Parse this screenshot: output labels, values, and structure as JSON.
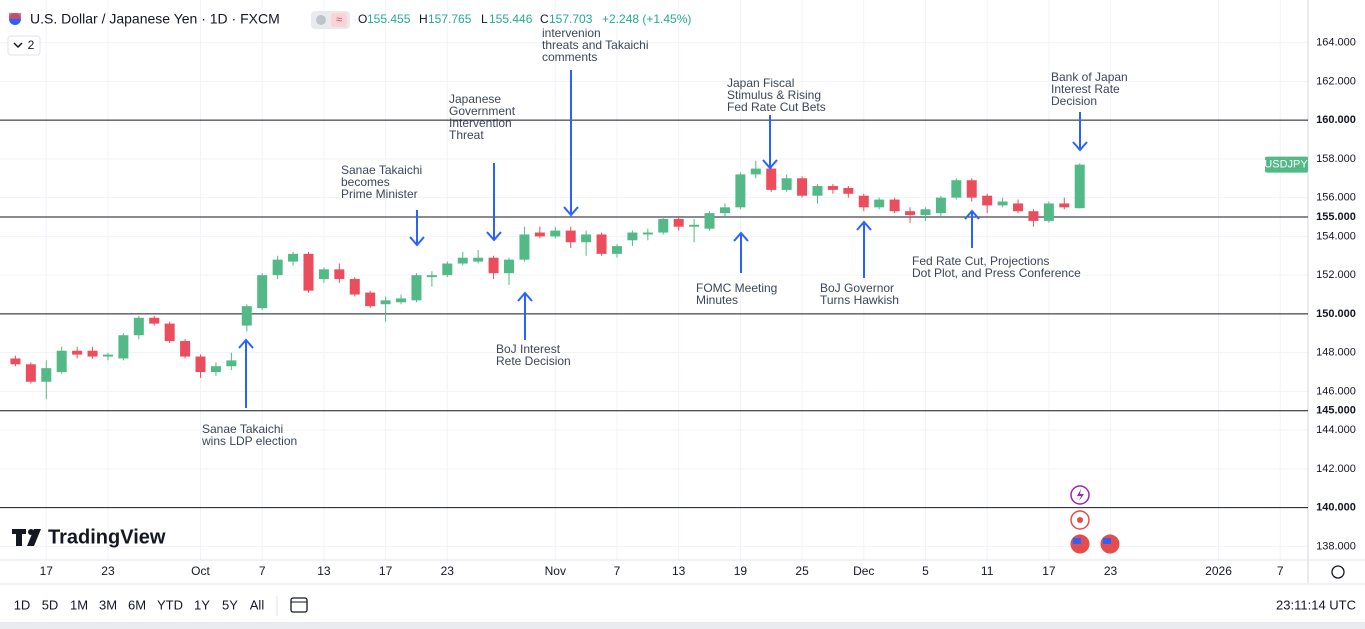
{
  "header": {
    "title": "U.S. Dollar / Japanese Yen · 1D · FXCM",
    "ohlc": [
      [
        "O",
        "155.455"
      ],
      [
        "H",
        "157.765"
      ],
      [
        "L",
        "155.446"
      ],
      [
        "C",
        "157.703"
      ]
    ],
    "change": "+2.248 (+1.45%)",
    "indicator_count": "2"
  },
  "logo": "TradingView",
  "toolbar": {
    "ranges": [
      "1D",
      "5D",
      "1M",
      "3M",
      "6M",
      "YTD",
      "1Y",
      "5Y",
      "All"
    ],
    "time": "23:11:14 UTC"
  },
  "chart_data": {
    "type": "candlestick",
    "up_color": "#53b987",
    "down_color": "#eb4d5c",
    "grid": true,
    "symbol_label": "USDJPY",
    "open": [
      147.7,
      147.4,
      146.5,
      147.0,
      148.1,
      148.1,
      147.8,
      147.7,
      148.9,
      149.8,
      149.5,
      148.6,
      147.8,
      147.0,
      147.3,
      149.4,
      150.3,
      152.0,
      152.7,
      153.1,
      151.8,
      152.3,
      151.8,
      151.1,
      150.5,
      150.6,
      150.7,
      151.9,
      152.0,
      152.6,
      152.7,
      152.9,
      152.1,
      152.8,
      154.2,
      154.0,
      154.3,
      153.7,
      154.1,
      153.1,
      153.8,
      154.1,
      154.2,
      154.9,
      154.5,
      154.4,
      155.2,
      155.5,
      157.2,
      157.5,
      156.4,
      157.0,
      156.1,
      156.6,
      156.5,
      156.1,
      155.5,
      155.9,
      155.3,
      155.1,
      155.2,
      156.0,
      156.9,
      156.1,
      155.6,
      155.7,
      155.3,
      154.8,
      155.7,
      155.455
    ],
    "high": [
      147.85,
      147.5,
      147.6,
      148.3,
      148.3,
      148.3,
      148.0,
      149.0,
      149.9,
      149.9,
      149.6,
      148.7,
      147.9,
      147.5,
      148.0,
      150.5,
      152.1,
      153.0,
      153.2,
      153.2,
      152.4,
      152.6,
      151.9,
      151.2,
      150.9,
      151.0,
      152.1,
      152.2,
      152.7,
      153.2,
      153.3,
      153.0,
      152.9,
      154.5,
      154.5,
      154.5,
      154.5,
      154.3,
      154.2,
      153.6,
      154.3,
      154.4,
      155.0,
      155.0,
      154.9,
      155.3,
      155.7,
      157.3,
      157.9,
      157.6,
      157.2,
      157.1,
      156.7,
      156.7,
      156.6,
      156.2,
      156.0,
      156.0,
      155.5,
      155.5,
      156.1,
      157.0,
      157.0,
      156.2,
      156.0,
      155.9,
      155.4,
      155.8,
      156.0,
      157.765
    ],
    "low": [
      147.3,
      146.4,
      145.6,
      146.9,
      147.7,
      147.7,
      147.6,
      147.6,
      148.7,
      149.4,
      148.5,
      147.7,
      146.7,
      146.8,
      147.1,
      149.1,
      150.2,
      151.8,
      152.5,
      151.1,
      151.6,
      151.6,
      150.9,
      150.3,
      149.6,
      150.5,
      150.6,
      151.4,
      151.9,
      152.5,
      152.6,
      151.8,
      151.5,
      152.7,
      153.9,
      153.9,
      153.4,
      153.0,
      153.0,
      152.9,
      153.5,
      153.8,
      154.1,
      154.3,
      153.7,
      154.3,
      155.0,
      155.4,
      157.0,
      156.3,
      156.3,
      156.0,
      155.7,
      156.2,
      156.0,
      155.3,
      155.4,
      155.2,
      154.7,
      154.8,
      155.0,
      155.9,
      155.8,
      155.2,
      155.5,
      155.2,
      154.5,
      154.7,
      155.4,
      155.446
    ],
    "close": [
      147.4,
      146.5,
      147.2,
      148.1,
      147.9,
      147.8,
      147.9,
      148.9,
      149.8,
      149.5,
      148.6,
      147.8,
      147.0,
      147.3,
      147.6,
      150.4,
      152.0,
      152.8,
      153.1,
      151.2,
      152.3,
      151.8,
      151.0,
      150.4,
      150.7,
      150.8,
      152.0,
      152.0,
      152.6,
      152.9,
      152.9,
      152.1,
      152.8,
      154.1,
      154.0,
      154.3,
      153.7,
      154.1,
      153.1,
      153.5,
      154.2,
      154.2,
      154.9,
      154.5,
      154.6,
      155.2,
      155.5,
      157.2,
      157.5,
      156.4,
      157.0,
      156.1,
      156.6,
      156.4,
      156.2,
      155.5,
      155.9,
      155.3,
      155.1,
      155.4,
      156.0,
      156.9,
      156.0,
      155.6,
      155.8,
      155.3,
      154.8,
      155.7,
      155.5,
      157.703
    ],
    "xlim": [
      -1,
      83.8
    ],
    "xticks": [
      {
        "value": 2,
        "label": "17"
      },
      {
        "value": 6,
        "label": "23"
      },
      {
        "value": 12,
        "label": "Oct"
      },
      {
        "value": 16,
        "label": "7"
      },
      {
        "value": 20,
        "label": "13"
      },
      {
        "value": 24,
        "label": "17"
      },
      {
        "value": 28,
        "label": "23"
      },
      {
        "value": 35,
        "label": "Nov"
      },
      {
        "value": 39,
        "label": "7"
      },
      {
        "value": 43,
        "label": "13"
      },
      {
        "value": 47,
        "label": "19"
      },
      {
        "value": 51,
        "label": "25"
      },
      {
        "value": 55,
        "label": "Dec"
      },
      {
        "value": 59,
        "label": "5"
      },
      {
        "value": 63,
        "label": "11"
      },
      {
        "value": 67,
        "label": "17"
      },
      {
        "value": 71,
        "label": "23"
      },
      {
        "value": 78,
        "label": "2026"
      },
      {
        "value": 82,
        "label": "7"
      }
    ],
    "ylim": [
      137.3,
      166.2
    ],
    "yticks": [
      {
        "value": 138,
        "label": "138.000"
      },
      {
        "value": 142,
        "label": "142.000"
      },
      {
        "value": 144,
        "label": "144.000"
      },
      {
        "value": 146,
        "label": "146.000"
      },
      {
        "value": 148,
        "label": "148.000"
      },
      {
        "value": 152,
        "label": "152.000"
      },
      {
        "value": 154,
        "label": "154.000"
      },
      {
        "value": 156,
        "label": "156.000"
      },
      {
        "value": 158,
        "label": "158.000"
      },
      {
        "value": 162,
        "label": "162.000"
      },
      {
        "value": 164,
        "label": "164.000"
      }
    ],
    "hlines": [
      {
        "value": 160,
        "label": "160.000"
      },
      {
        "value": 155,
        "label": "155.000"
      },
      {
        "value": 150,
        "label": "150.000"
      },
      {
        "value": 145,
        "label": "145.000"
      },
      {
        "value": 140,
        "label": "140.000"
      }
    ],
    "annotations": [
      [
        "Sanae Takaichi",
        "wins LDP election"
      ],
      [
        "Sanae Takaichi",
        "becomes",
        "Prime Minister"
      ],
      [
        "Japanese",
        "Government",
        "Intervention",
        "Threat"
      ],
      [
        "intervenion",
        "threats and Takaichi",
        "comments"
      ],
      [
        "BoJ Interest",
        "Rete Decision"
      ],
      [
        "Japan Fiscal",
        "Stimulus & Rising",
        "Fed Rate Cut Bets"
      ],
      [
        "FOMC Meeting",
        "Minutes"
      ],
      [
        "BoJ Governor",
        "Turns Hawkish"
      ],
      [
        "Fed Rate Cut, Projections",
        "Dot Plot, and Press Conference"
      ],
      [
        "Bank of Japan",
        "Interest Rate",
        "Decision"
      ]
    ]
  }
}
